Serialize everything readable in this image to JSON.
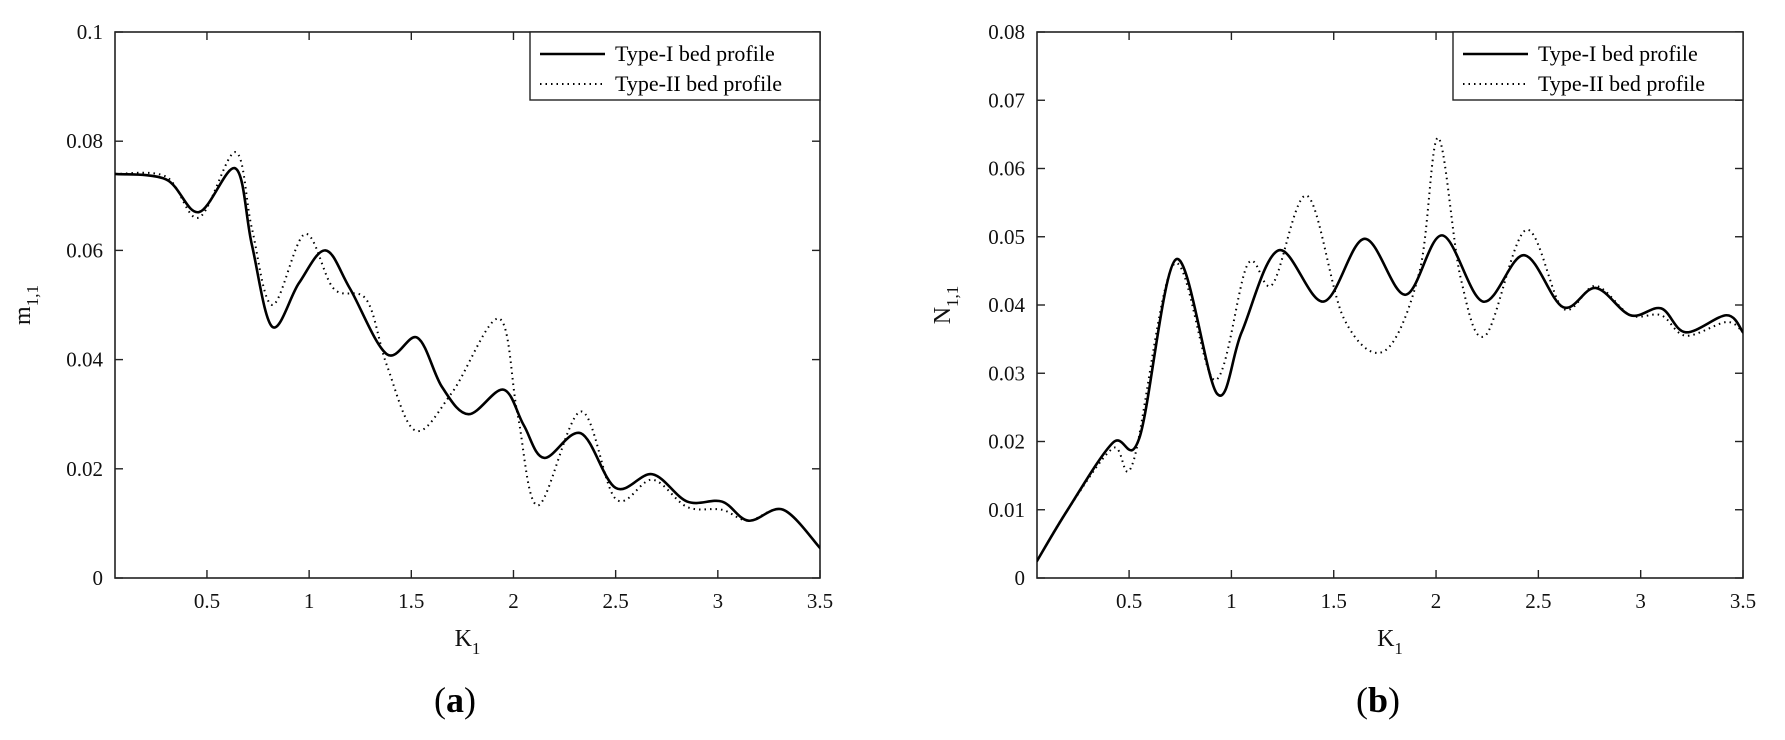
{
  "figure": {
    "panels": [
      "(a)",
      "(b)"
    ]
  },
  "chart_data": [
    {
      "type": "line",
      "panel_label": "(a)",
      "panel_label_parts": {
        "open": "(",
        "letter": "a",
        "close": ")"
      },
      "xlabel": {
        "main": "K",
        "sub": "1"
      },
      "ylabel": {
        "main": "m",
        "sub": "1,1"
      },
      "xlim": [
        0.05,
        3.5
      ],
      "ylim": [
        0,
        0.1
      ],
      "xticks": [
        0.5,
        1,
        1.5,
        2,
        2.5,
        3,
        3.5
      ],
      "xtick_labels": [
        "0.5",
        "1",
        "1.5",
        "2",
        "2.5",
        "3",
        "3.5"
      ],
      "yticks": [
        0,
        0.02,
        0.04,
        0.06,
        0.08,
        0.1
      ],
      "ytick_labels": [
        "0",
        "0.02",
        "0.04",
        "0.06",
        "0.08",
        "0.1"
      ],
      "legend_position": "top-right",
      "grid": false,
      "series": [
        {
          "name": "Type-I bed profile",
          "style": "solid",
          "x": [
            0.05,
            0.3,
            0.46,
            0.64,
            0.72,
            0.82,
            0.95,
            1.08,
            1.2,
            1.38,
            1.53,
            1.65,
            1.78,
            1.95,
            2.05,
            2.15,
            2.33,
            2.5,
            2.68,
            2.85,
            3.02,
            3.15,
            3.32,
            3.5
          ],
          "y": [
            0.074,
            0.073,
            0.067,
            0.075,
            0.061,
            0.046,
            0.054,
            0.06,
            0.053,
            0.041,
            0.044,
            0.035,
            0.03,
            0.0345,
            0.028,
            0.022,
            0.0265,
            0.0165,
            0.019,
            0.014,
            0.014,
            0.0105,
            0.0125,
            0.0055
          ]
        },
        {
          "name": "Type-II bed profile",
          "style": "dotted",
          "x": [
            0.05,
            0.3,
            0.46,
            0.64,
            0.72,
            0.82,
            0.98,
            1.12,
            1.28,
            1.38,
            1.52,
            1.7,
            1.93,
            2.02,
            2.12,
            2.33,
            2.5,
            2.68,
            2.85,
            3.02,
            3.15,
            3.32,
            3.5
          ],
          "y": [
            0.074,
            0.0735,
            0.066,
            0.078,
            0.064,
            0.05,
            0.063,
            0.053,
            0.051,
            0.039,
            0.027,
            0.034,
            0.0475,
            0.03,
            0.0133,
            0.0305,
            0.0145,
            0.018,
            0.013,
            0.0125,
            0.0105,
            0.0125,
            0.0055
          ]
        }
      ]
    },
    {
      "type": "line",
      "panel_label": "(b)",
      "panel_label_parts": {
        "open": "(",
        "letter": "b",
        "close": ")"
      },
      "xlabel": {
        "main": "K",
        "sub": "1"
      },
      "ylabel": {
        "main": "N",
        "sub": "1,1"
      },
      "xlim": [
        0.05,
        3.5
      ],
      "ylim": [
        0,
        0.08
      ],
      "xticks": [
        0.5,
        1,
        1.5,
        2,
        2.5,
        3,
        3.5
      ],
      "xtick_labels": [
        "0.5",
        "1",
        "1.5",
        "2",
        "2.5",
        "3",
        "3.5"
      ],
      "yticks": [
        0,
        0.01,
        0.02,
        0.03,
        0.04,
        0.05,
        0.06,
        0.07,
        0.08
      ],
      "ytick_labels": [
        "0",
        "0.01",
        "0.02",
        "0.03",
        "0.04",
        "0.05",
        "0.06",
        "0.07",
        "0.08"
      ],
      "legend_position": "top-right",
      "grid": false,
      "series": [
        {
          "name": "Type-I bed profile",
          "style": "solid",
          "x": [
            0.05,
            0.2,
            0.42,
            0.55,
            0.73,
            0.93,
            1.05,
            1.23,
            1.45,
            1.65,
            1.85,
            2.03,
            2.23,
            2.43,
            2.62,
            2.78,
            2.95,
            3.1,
            3.22,
            3.42,
            3.5
          ],
          "y": [
            0.0025,
            0.01,
            0.0198,
            0.0205,
            0.0467,
            0.027,
            0.036,
            0.048,
            0.0405,
            0.0497,
            0.0415,
            0.0502,
            0.0405,
            0.0473,
            0.0397,
            0.0425,
            0.0385,
            0.0395,
            0.036,
            0.0385,
            0.036
          ]
        },
        {
          "name": "Type-II bed profile",
          "style": "dotted",
          "x": [
            0.05,
            0.2,
            0.42,
            0.52,
            0.72,
            0.92,
            1.08,
            1.2,
            1.37,
            1.55,
            1.75,
            1.92,
            2.01,
            2.12,
            2.24,
            2.44,
            2.62,
            2.78,
            2.95,
            3.1,
            3.22,
            3.42,
            3.5
          ],
          "y": [
            0.0025,
            0.01,
            0.019,
            0.017,
            0.046,
            0.029,
            0.046,
            0.043,
            0.056,
            0.038,
            0.0333,
            0.045,
            0.0645,
            0.044,
            0.0355,
            0.051,
            0.0395,
            0.0428,
            0.0385,
            0.0385,
            0.0355,
            0.0375,
            0.036
          ]
        }
      ]
    }
  ]
}
